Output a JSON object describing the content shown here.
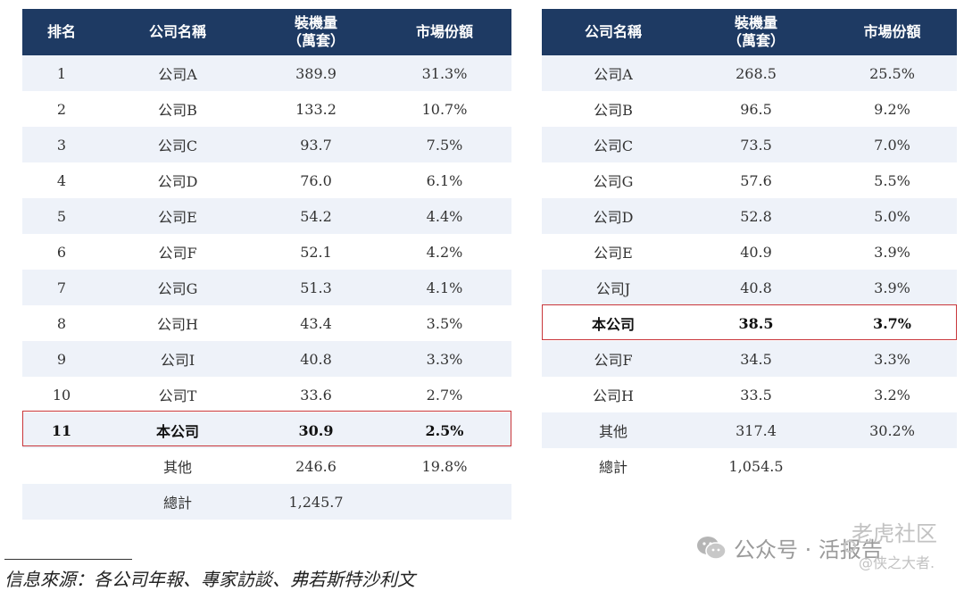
{
  "left_table": {
    "headers": [
      "排名",
      "公司名稱",
      "裝機量\n（萬套）",
      "市場份額"
    ],
    "rows": [
      {
        "rank": "1",
        "company": "公司A",
        "volume": "389.9",
        "share": "31.3%"
      },
      {
        "rank": "2",
        "company": "公司B",
        "volume": "133.2",
        "share": "10.7%"
      },
      {
        "rank": "3",
        "company": "公司C",
        "volume": "93.7",
        "share": "7.5%"
      },
      {
        "rank": "4",
        "company": "公司D",
        "volume": "76.0",
        "share": "6.1%"
      },
      {
        "rank": "5",
        "company": "公司E",
        "volume": "54.2",
        "share": "4.4%"
      },
      {
        "rank": "6",
        "company": "公司F",
        "volume": "52.1",
        "share": "4.2%"
      },
      {
        "rank": "7",
        "company": "公司G",
        "volume": "51.3",
        "share": "4.1%"
      },
      {
        "rank": "8",
        "company": "公司H",
        "volume": "43.4",
        "share": "3.5%"
      },
      {
        "rank": "9",
        "company": "公司I",
        "volume": "40.8",
        "share": "3.3%"
      },
      {
        "rank": "10",
        "company": "公司T",
        "volume": "33.6",
        "share": "2.7%"
      },
      {
        "rank": "11",
        "company": "本公司",
        "volume": "30.9",
        "share": "2.5%",
        "highlight": true
      },
      {
        "rank": "",
        "company": "其他",
        "volume": "246.6",
        "share": "19.8%"
      },
      {
        "rank": "",
        "company": "總計",
        "volume": "1,245.7",
        "share": ""
      }
    ]
  },
  "right_table": {
    "headers": [
      "公司名稱",
      "裝機量\n（萬套）",
      "市場份額"
    ],
    "rows": [
      {
        "company": "公司A",
        "volume": "268.5",
        "share": "25.5%"
      },
      {
        "company": "公司B",
        "volume": "96.5",
        "share": "9.2%"
      },
      {
        "company": "公司C",
        "volume": "73.5",
        "share": "7.0%"
      },
      {
        "company": "公司G",
        "volume": "57.6",
        "share": "5.5%"
      },
      {
        "company": "公司D",
        "volume": "52.8",
        "share": "5.0%"
      },
      {
        "company": "公司E",
        "volume": "40.9",
        "share": "3.9%"
      },
      {
        "company": "公司J",
        "volume": "40.8",
        "share": "3.9%"
      },
      {
        "company": "本公司",
        "volume": "38.5",
        "share": "3.7%",
        "highlight": true
      },
      {
        "company": "公司F",
        "volume": "34.5",
        "share": "3.3%"
      },
      {
        "company": "公司H",
        "volume": "33.5",
        "share": "3.2%"
      },
      {
        "company": "其他",
        "volume": "317.4",
        "share": "30.2%"
      },
      {
        "company": "總計",
        "volume": "1,054.5",
        "share": ""
      }
    ]
  },
  "source_note": "信息來源：各公司年報、專家訪談、弗若斯特沙利文",
  "watermark": {
    "wechat_label": "公众号 · 活报告",
    "logo_text_top": "老虎社区",
    "logo_text_bottom": "@侠之大者."
  },
  "colors": {
    "header_bg": "#1e3a63",
    "row_stripe": "#eef2f9",
    "highlight_border": "#c9363a"
  }
}
